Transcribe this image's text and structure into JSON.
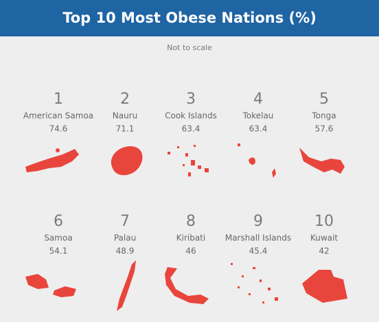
{
  "header": {
    "title": "Top 10 Most Obese Nations (%)"
  },
  "subtitle": "Not to scale",
  "items": [
    {
      "rank": 1,
      "name": "American Samoa",
      "value": "74.6"
    },
    {
      "rank": 2,
      "name": "Nauru",
      "value": "71.1"
    },
    {
      "rank": 3,
      "name": "Cook Islands",
      "value": "63.4"
    },
    {
      "rank": 4,
      "name": "Tokelau",
      "value": "63.4"
    },
    {
      "rank": 5,
      "name": "Tonga",
      "value": "57.6"
    },
    {
      "rank": 6,
      "name": "Samoa",
      "value": "54.1"
    },
    {
      "rank": 7,
      "name": "Palau",
      "value": "48.9"
    },
    {
      "rank": 8,
      "name": "Kiribati",
      "value": "46"
    },
    {
      "rank": 9,
      "name": "Marshall Islands",
      "value": "45.4"
    },
    {
      "rank": 10,
      "name": "Kuwait",
      "value": "42"
    }
  ]
}
